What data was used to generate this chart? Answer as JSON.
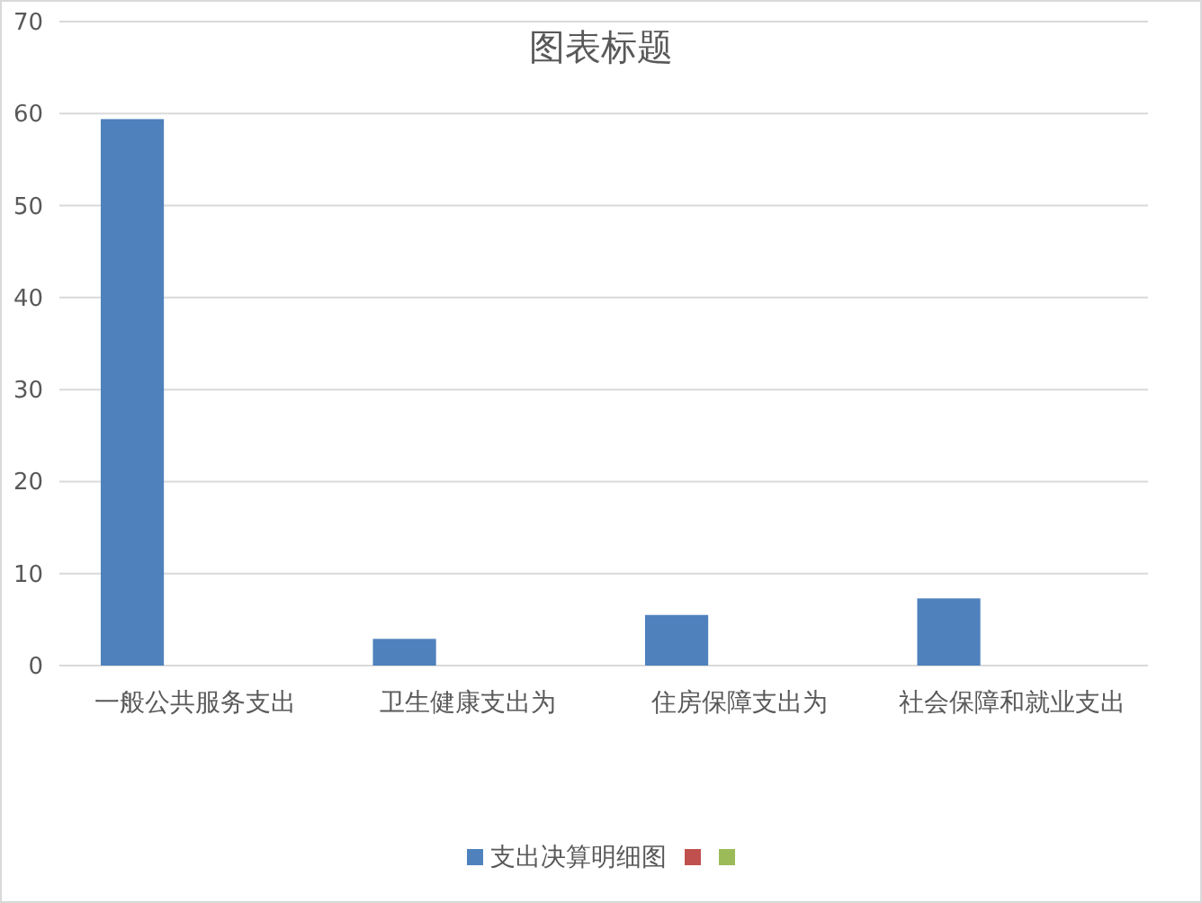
{
  "chart_data": {
    "type": "bar",
    "title": "图表标题",
    "categories": [
      "一般公共服务支出",
      "卫生健康支出为",
      "住房保障支出为",
      "社会保障和就业支出"
    ],
    "series": [
      {
        "name": "支出决算明细图",
        "color": "#4f81bd",
        "values": [
          59.4,
          2.9,
          5.5,
          7.3
        ]
      },
      {
        "color": "#c0504d",
        "values": [
          null,
          null,
          null,
          null
        ]
      },
      {
        "color": "#9bbb59",
        "values": [
          null,
          null,
          null,
          null
        ]
      }
    ],
    "ylim": [
      0,
      70
    ],
    "yticks": [
      0,
      10,
      20,
      30,
      40,
      50,
      60,
      70
    ],
    "grid": "y",
    "legend": "bottom"
  }
}
